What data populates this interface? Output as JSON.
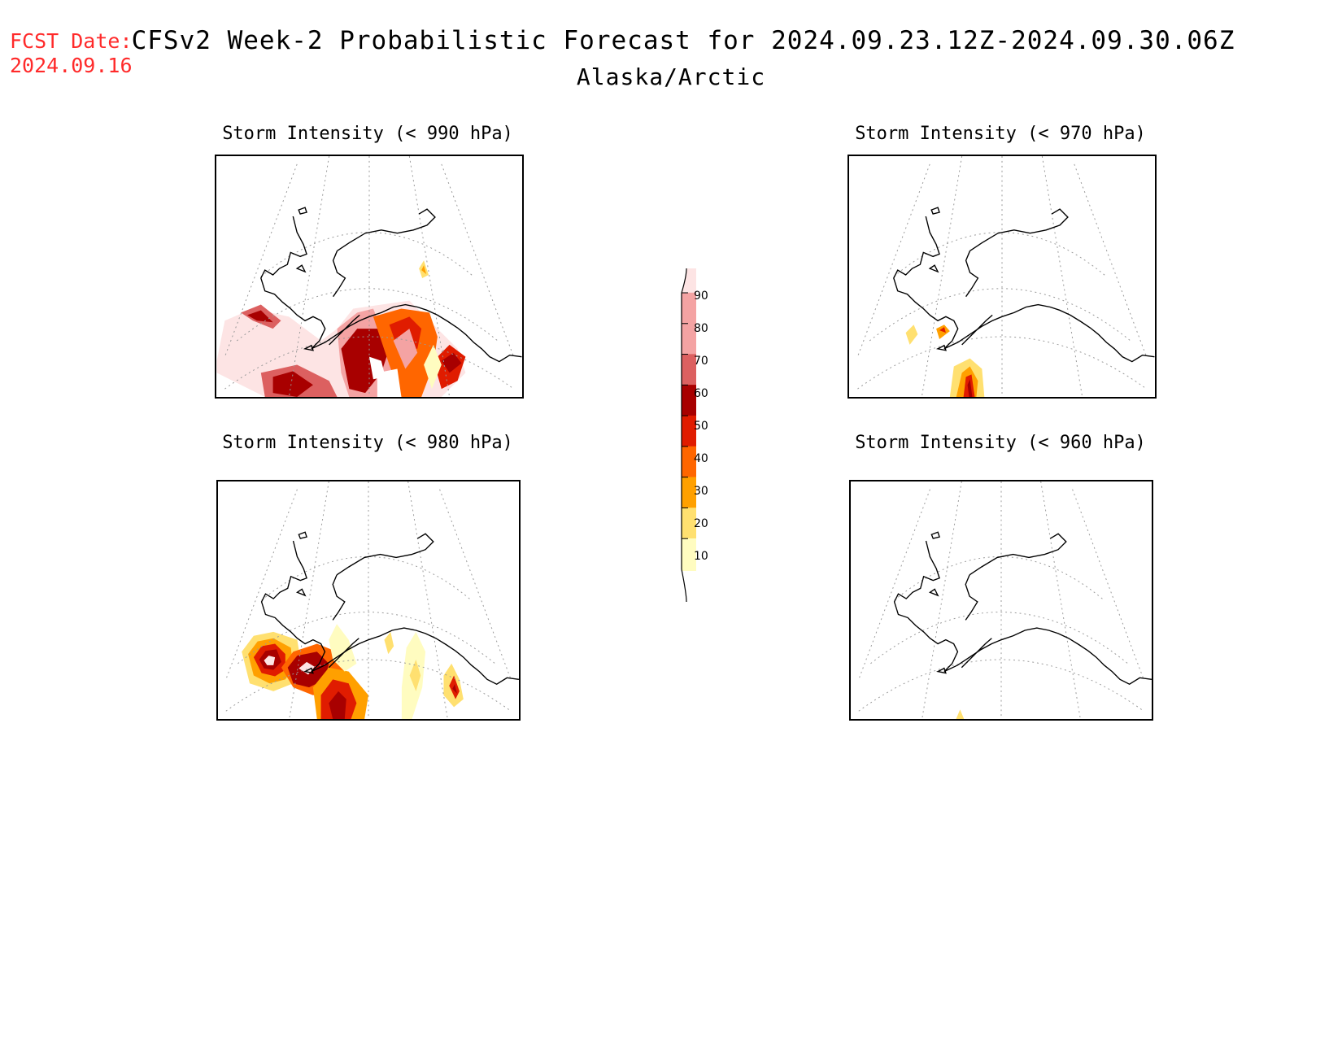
{
  "header": {
    "fcst_label": "FCST Date:",
    "fcst_date": "2024.09.16",
    "title": "CFSv2 Week-2 Probabilistic Forecast for 2024.09.23.12Z-2024.09.30.06Z",
    "subtitle": "Alaska/Arctic"
  },
  "panels": [
    {
      "title": "Storm Intensity (< 990 hPa)"
    },
    {
      "title": "Storm Intensity (< 970 hPa)"
    },
    {
      "title": "Storm Intensity (< 980 hPa)"
    },
    {
      "title": "Storm Intensity (< 960 hPa)"
    }
  ],
  "colorbar": {
    "labels": [
      "90",
      "80",
      "70",
      "60",
      "50",
      "40",
      "30",
      "20",
      "10"
    ],
    "colors": [
      "#fde4e4",
      "#f4a3a3",
      "#dc6060",
      "#a80000",
      "#e01c00",
      "#ff6600",
      "#ffa000",
      "#ffe070",
      "#fffcc0"
    ]
  }
}
